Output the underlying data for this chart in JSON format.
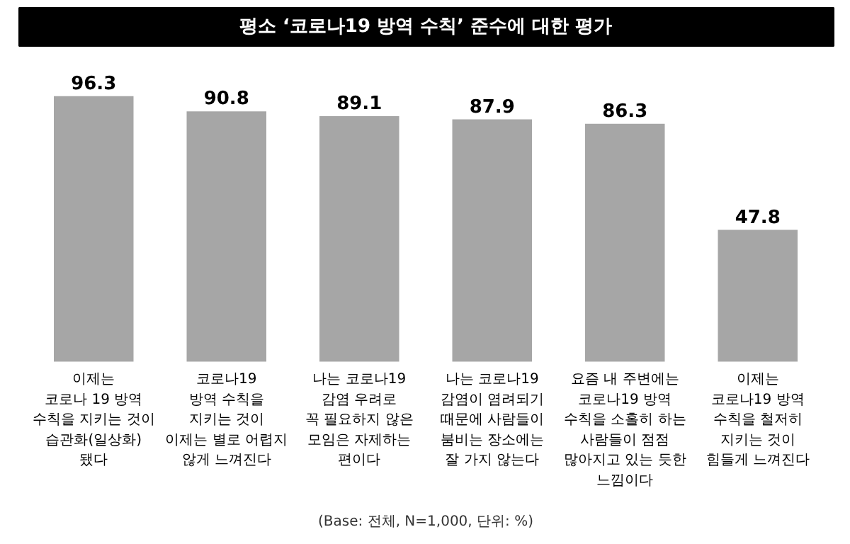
{
  "chart_data": {
    "type": "bar",
    "title": "평소 ‘코로나19 방역 수칙’ 준수에 대한 평가",
    "categories": [
      "이제는\n코로나 19 방역\n수칙을 지키는 것이\n습관화(일상화)\n됐다",
      "코로나19\n방역 수칙을\n지키는 것이\n이제는 별로 어렵지\n않게 느껴진다",
      "나는 코로나19\n감염 우려로\n꼭 필요하지 않은\n모임은 자제하는\n편이다",
      "나는 코로나19\n감염이 염려되기\n때문에 사람들이\n붐비는 장소에는\n잘 가지 않는다",
      "요즘 내 주변에는\n코로나19 방역\n수칙을 소홀히 하는\n사람들이 점점\n많아지고 있는 듯한\n느낌이다",
      "이제는\n코로나19 방역\n수칙을 철저히\n지키는 것이\n힘들게 느껴진다"
    ],
    "values": [
      96.3,
      90.8,
      89.1,
      87.9,
      86.3,
      47.8
    ],
    "color": "#a6a6a6",
    "data_labels": true,
    "annotations": [
      "(Base: 전체, N=1,000, 단위: %)"
    ]
  }
}
